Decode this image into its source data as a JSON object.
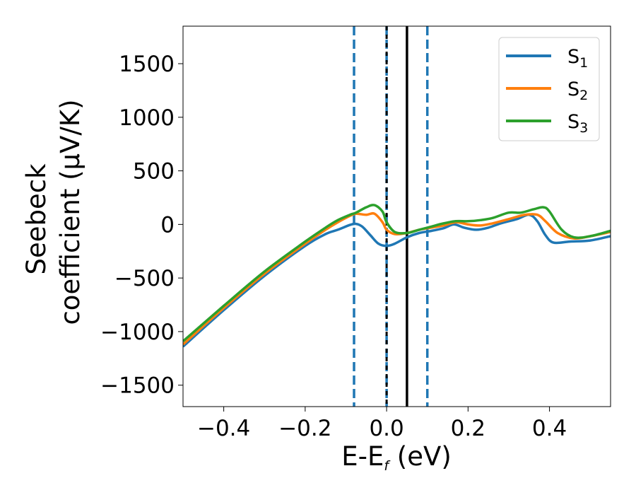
{
  "chart_data": {
    "type": "line",
    "xlabel_main": "E-E",
    "xlabel_sub": "f",
    "xlabel_unit": " (eV)",
    "ylabel_line1": "Seebeck",
    "ylabel_line2": "coefficient  (μV/K)",
    "xlim": [
      -0.5,
      0.55
    ],
    "ylim": [
      -1700,
      1850
    ],
    "xticks": [
      -0.4,
      -0.2,
      0.0,
      0.2,
      0.4
    ],
    "xtick_labels": [
      "−0.4",
      "−0.2",
      "0.0",
      "0.2",
      "0.4"
    ],
    "yticks": [
      1500,
      1000,
      500,
      0,
      -500,
      -1000,
      -1500
    ],
    "ytick_labels": [
      "1500",
      "1000",
      "500",
      "0",
      "−500",
      "−1000",
      "−1500"
    ],
    "legend_position": "top-right",
    "vlines": [
      {
        "x": -0.08,
        "style": "dashed",
        "color": "#1f77b4"
      },
      {
        "x": 0.0,
        "style": "dashed",
        "color": "#1f77b4"
      },
      {
        "x": 0.0,
        "style": "dotted",
        "color": "#000000"
      },
      {
        "x": 0.05,
        "style": "solid",
        "color": "#000000"
      },
      {
        "x": 0.1,
        "style": "dashed",
        "color": "#1f77b4"
      }
    ],
    "series": [
      {
        "name": "S",
        "sub": "1",
        "color": "#1f77b4",
        "points": [
          [
            -0.5,
            -1140
          ],
          [
            -0.4,
            -800
          ],
          [
            -0.3,
            -480
          ],
          [
            -0.2,
            -200
          ],
          [
            -0.15,
            -90
          ],
          [
            -0.12,
            -50
          ],
          [
            -0.09,
            -5
          ],
          [
            -0.075,
            5
          ],
          [
            -0.06,
            -20
          ],
          [
            -0.04,
            -100
          ],
          [
            -0.02,
            -180
          ],
          [
            0.0,
            -200
          ],
          [
            0.02,
            -180
          ],
          [
            0.05,
            -120
          ],
          [
            0.08,
            -80
          ],
          [
            0.11,
            -60
          ],
          [
            0.14,
            -35
          ],
          [
            0.165,
            0
          ],
          [
            0.19,
            -30
          ],
          [
            0.22,
            -50
          ],
          [
            0.25,
            -30
          ],
          [
            0.28,
            10
          ],
          [
            0.32,
            50
          ],
          [
            0.35,
            90
          ],
          [
            0.37,
            30
          ],
          [
            0.39,
            -100
          ],
          [
            0.41,
            -170
          ],
          [
            0.45,
            -160
          ],
          [
            0.5,
            -150
          ],
          [
            0.55,
            -110
          ]
        ]
      },
      {
        "name": "S",
        "sub": "2",
        "color": "#ff7f0e",
        "points": [
          [
            -0.5,
            -1120
          ],
          [
            -0.4,
            -780
          ],
          [
            -0.3,
            -460
          ],
          [
            -0.2,
            -180
          ],
          [
            -0.15,
            -50
          ],
          [
            -0.12,
            20
          ],
          [
            -0.09,
            80
          ],
          [
            -0.075,
            100
          ],
          [
            -0.05,
            90
          ],
          [
            -0.03,
            100
          ],
          [
            -0.01,
            20
          ],
          [
            0.0,
            -50
          ],
          [
            0.02,
            -90
          ],
          [
            0.05,
            -80
          ],
          [
            0.08,
            -50
          ],
          [
            0.11,
            -30
          ],
          [
            0.14,
            -10
          ],
          [
            0.17,
            20
          ],
          [
            0.2,
            0
          ],
          [
            0.23,
            -10
          ],
          [
            0.26,
            10
          ],
          [
            0.3,
            50
          ],
          [
            0.34,
            90
          ],
          [
            0.37,
            90
          ],
          [
            0.39,
            30
          ],
          [
            0.42,
            -80
          ],
          [
            0.46,
            -130
          ],
          [
            0.5,
            -110
          ],
          [
            0.55,
            -70
          ]
        ]
      },
      {
        "name": "S",
        "sub": "3",
        "color": "#2ca02c",
        "points": [
          [
            -0.5,
            -1090
          ],
          [
            -0.4,
            -760
          ],
          [
            -0.3,
            -440
          ],
          [
            -0.2,
            -160
          ],
          [
            -0.15,
            -30
          ],
          [
            -0.12,
            40
          ],
          [
            -0.09,
            90
          ],
          [
            -0.075,
            110
          ],
          [
            -0.05,
            160
          ],
          [
            -0.03,
            180
          ],
          [
            -0.01,
            120
          ],
          [
            0.0,
            20
          ],
          [
            0.02,
            -70
          ],
          [
            0.05,
            -80
          ],
          [
            0.08,
            -50
          ],
          [
            0.11,
            -20
          ],
          [
            0.14,
            10
          ],
          [
            0.17,
            30
          ],
          [
            0.2,
            30
          ],
          [
            0.23,
            40
          ],
          [
            0.26,
            60
          ],
          [
            0.3,
            110
          ],
          [
            0.33,
            110
          ],
          [
            0.36,
            140
          ],
          [
            0.385,
            160
          ],
          [
            0.4,
            120
          ],
          [
            0.43,
            -50
          ],
          [
            0.46,
            -120
          ],
          [
            0.5,
            -110
          ],
          [
            0.55,
            -60
          ]
        ]
      }
    ]
  }
}
